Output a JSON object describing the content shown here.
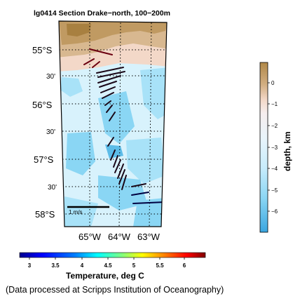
{
  "title": "lg0414 Section Drake−north, 100−200m",
  "lat_labels": [
    {
      "text": "55°S"
    },
    {
      "text": "30'"
    },
    {
      "text": "56°S"
    },
    {
      "text": "30'"
    },
    {
      "text": "57°S"
    },
    {
      "text": "30'"
    },
    {
      "text": "58°S"
    }
  ],
  "lon_labels": [
    {
      "text": "65°W"
    },
    {
      "text": "64°W"
    },
    {
      "text": "63°W"
    }
  ],
  "scale_label": "1 m/s",
  "depth_colorbar": {
    "label": "depth, km",
    "ticks": [
      "0",
      "−1",
      "−2",
      "−3",
      "−4",
      "−5",
      "−6"
    ],
    "colors": [
      "#b08848",
      "#d8b890",
      "#f3d8c8",
      "#e8f4fb",
      "#c8ecfb",
      "#8ad6f4",
      "#3aa6e0"
    ]
  },
  "temperature_colorbar": {
    "label": "Temperature, deg C",
    "ticks": [
      "3",
      "3.5",
      "4",
      "4.5",
      "5",
      "5.5",
      "6"
    ],
    "range": [
      2.6,
      6.4
    ],
    "colors": [
      "#00008f",
      "#0000ff",
      "#0080ff",
      "#00ffff",
      "#80ff80",
      "#ffff00",
      "#ff8000",
      "#ff0000",
      "#800000"
    ]
  },
  "credit": "(Data processed at Scripps Institution of Oceanography)"
}
